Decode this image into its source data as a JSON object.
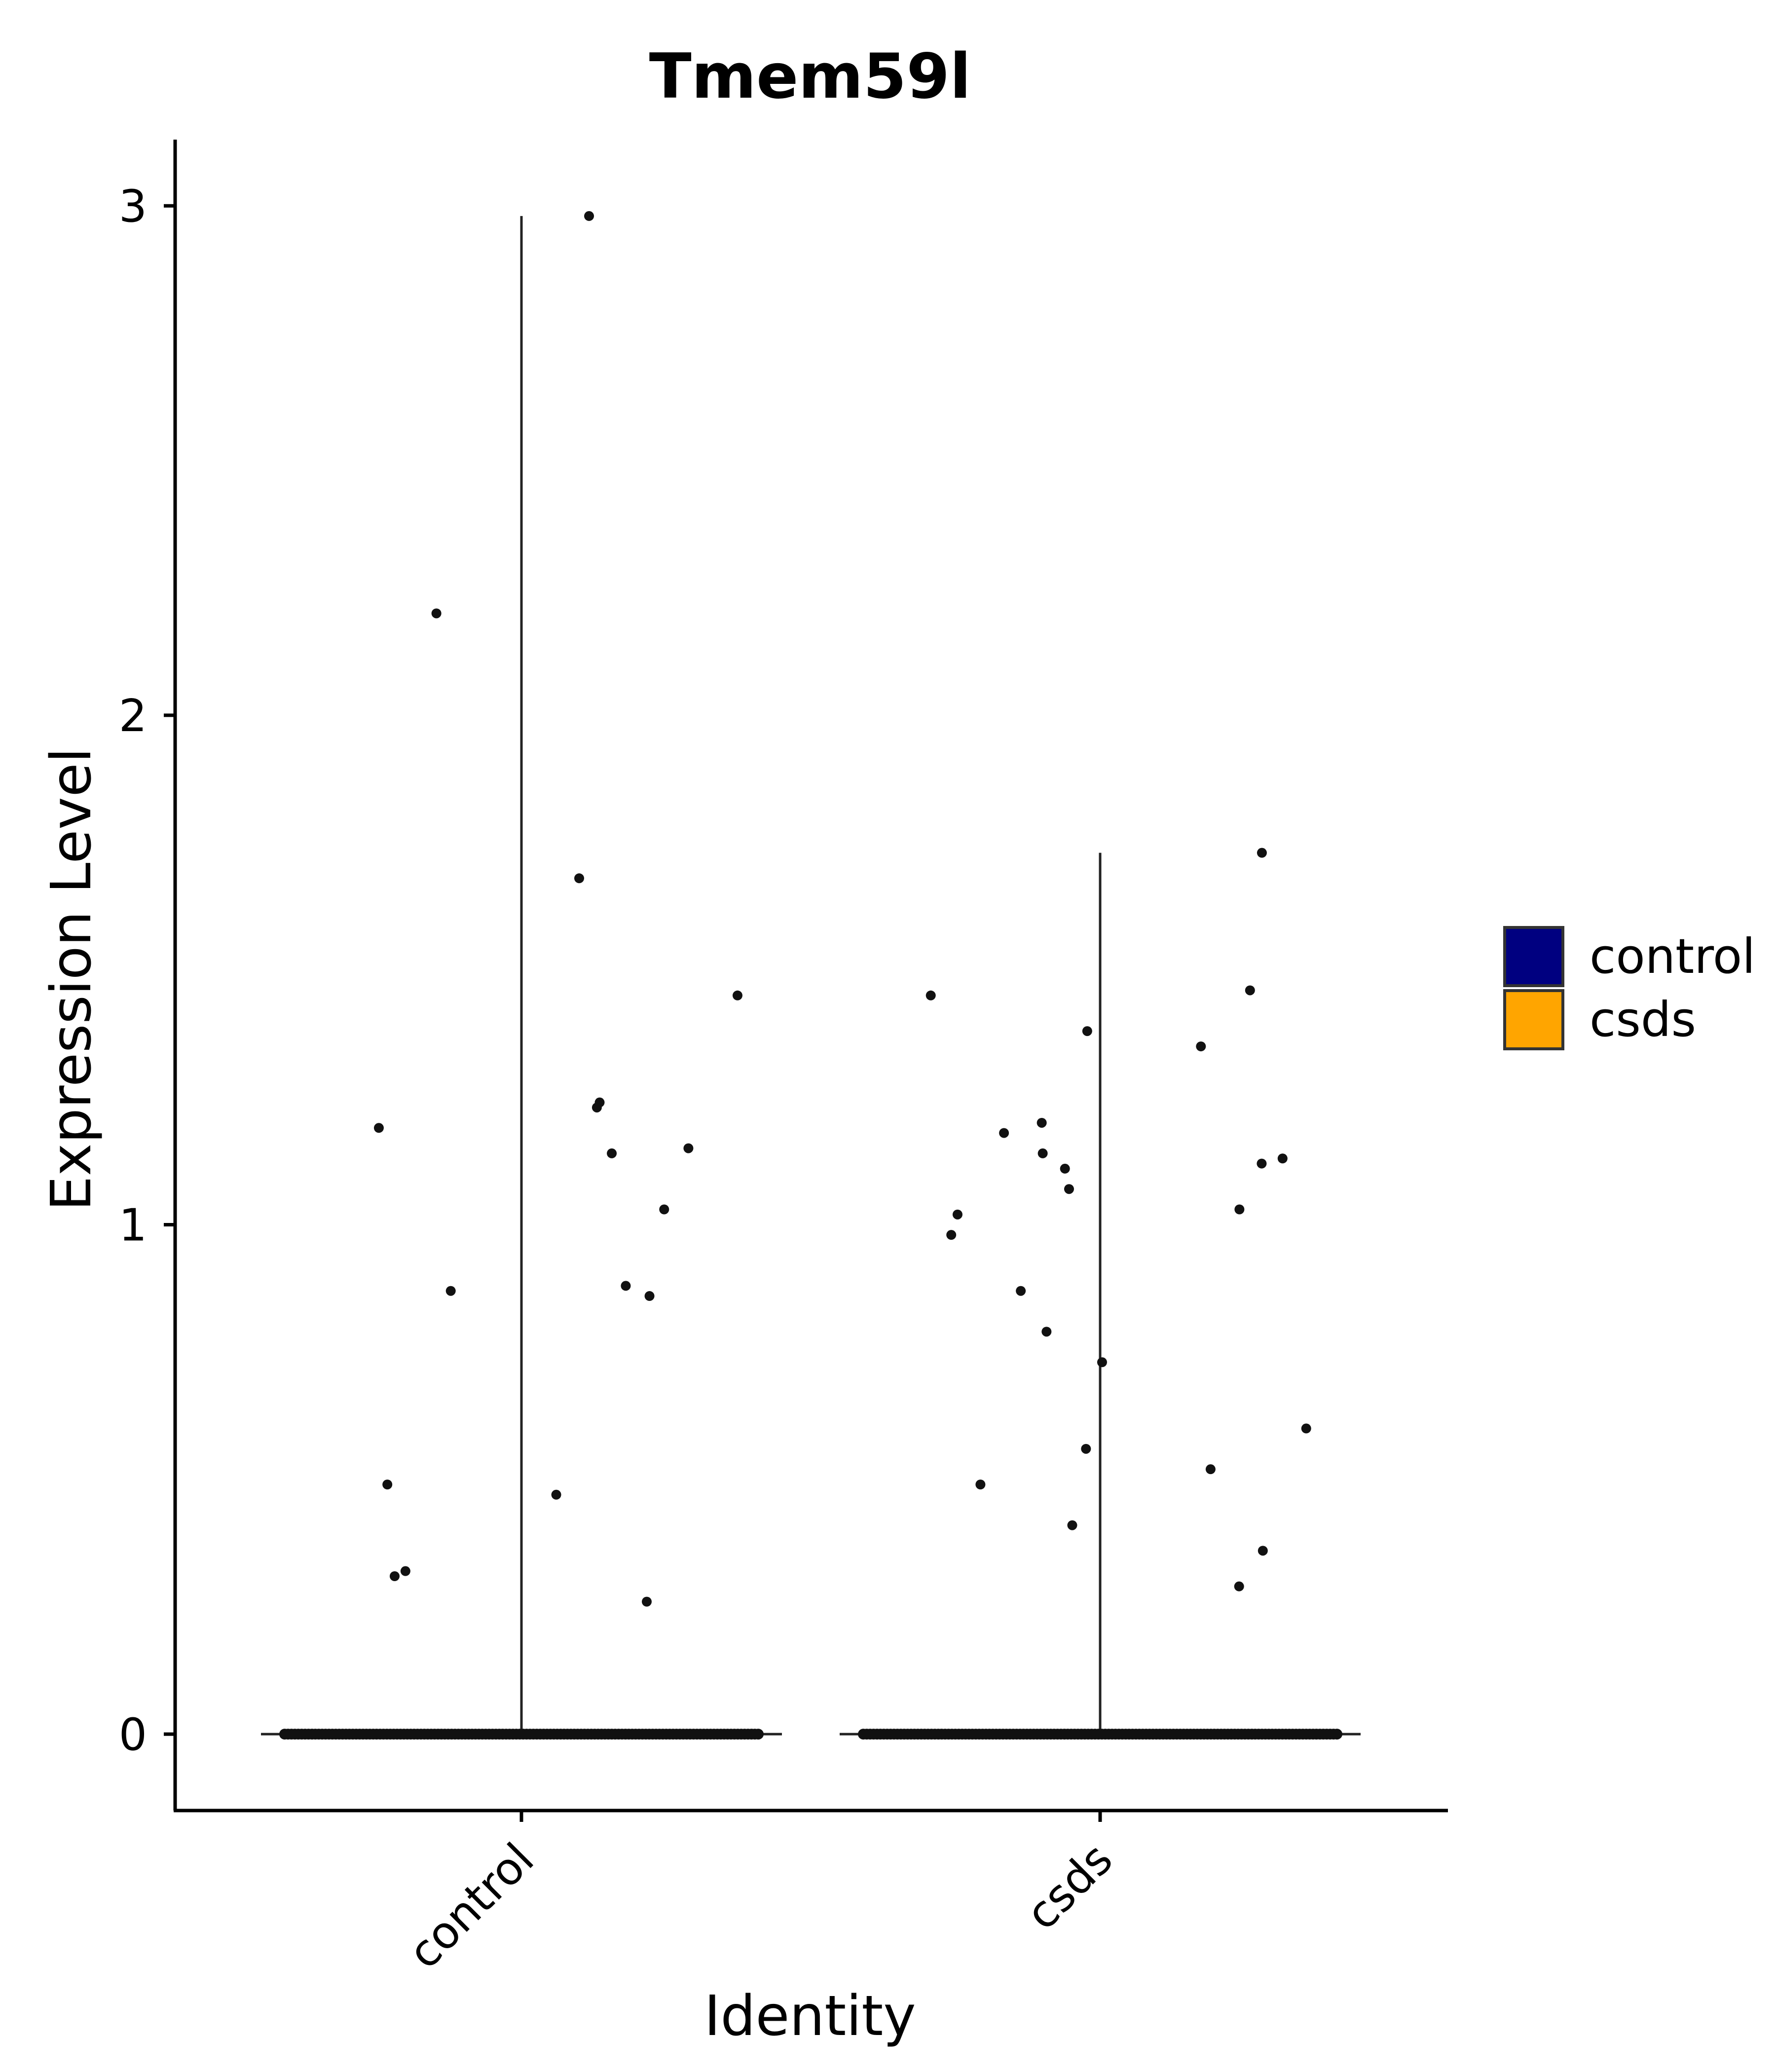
{
  "chart_data": {
    "type": "violin",
    "title": "Tmem59l",
    "xlabel": "Identity",
    "ylabel": "Expression Level",
    "categories": [
      "control",
      "csds"
    ],
    "y_ticks": [
      0,
      1,
      2,
      3
    ],
    "ylim": [
      -0.15,
      3.13
    ],
    "grid": false,
    "legend": {
      "placement": "right",
      "entries": [
        {
          "label": "control",
          "color": "#000080"
        },
        {
          "label": "csds",
          "color": "#FFA500"
        }
      ]
    },
    "series": [
      {
        "name": "control",
        "color": "#000080",
        "max": 2.98,
        "nonzero_points": [
          2.98,
          2.2,
          1.68,
          1.45,
          1.24,
          1.23,
          1.19,
          1.15,
          1.14,
          1.03,
          0.88,
          0.87,
          0.86,
          0.49,
          0.47,
          0.32,
          0.31,
          0.26
        ]
      },
      {
        "name": "csds",
        "color": "#FFA500",
        "max": 1.73,
        "nonzero_points": [
          1.73,
          1.46,
          1.45,
          1.38,
          1.35,
          1.2,
          1.18,
          1.14,
          1.13,
          1.12,
          1.11,
          1.07,
          1.03,
          1.02,
          0.98,
          0.87,
          0.79,
          0.73,
          0.6,
          0.56,
          0.52,
          0.49,
          0.41,
          0.36,
          0.29
        ]
      }
    ]
  }
}
